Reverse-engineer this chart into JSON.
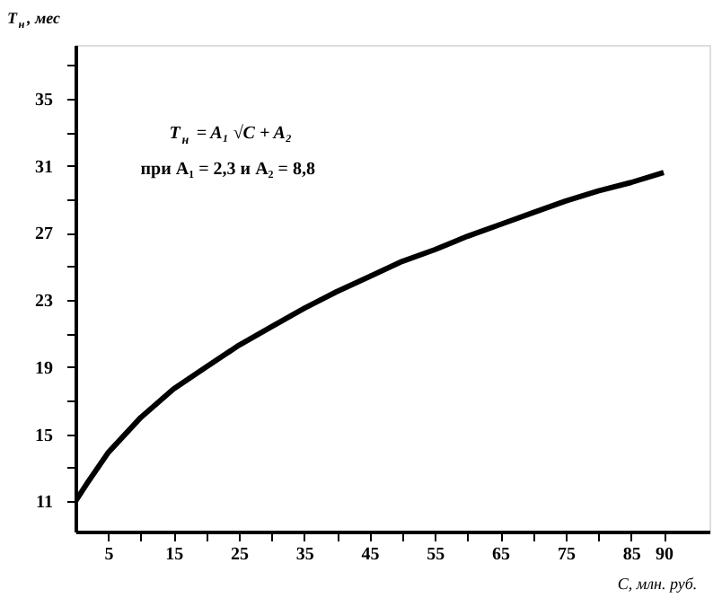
{
  "chart_data": {
    "type": "line",
    "xlabel": "C, млн. руб.",
    "ylabel": "T$_{н}$, мес",
    "annotations": [
      "T$_{н}$ = A₁ √C + A₂",
      "при A₁ = 2,3 и A₂ = 8,8"
    ],
    "x": [
      0,
      2,
      5,
      10,
      15,
      20,
      25,
      30,
      35,
      40,
      45,
      50,
      55,
      60,
      65,
      70,
      75,
      80,
      85,
      90
    ],
    "series": [
      {
        "color": "#000000",
        "values": [
          11.0,
          12.2,
          13.9,
          16.0,
          17.7,
          19.0,
          20.3,
          21.4,
          22.5,
          23.5,
          24.4,
          25.3,
          26.0,
          26.8,
          27.5,
          28.2,
          28.9,
          29.5,
          30.0,
          30.6
        ]
      }
    ],
    "xlim": [
      0,
      97
    ],
    "ylim": [
      9.2,
      38.2
    ],
    "xticks": [
      5,
      {
        "value": 10,
        "label": null
      },
      15,
      {
        "value": 20,
        "label": null
      },
      25,
      {
        "value": 30,
        "label": null
      },
      35,
      {
        "value": 40,
        "label": null
      },
      45,
      {
        "value": 50,
        "label": null
      },
      55,
      {
        "value": 60,
        "label": null
      },
      65,
      {
        "value": 70,
        "label": null
      },
      75,
      {
        "value": 80,
        "label": null
      },
      85,
      90
    ],
    "yticks": [
      11,
      {
        "value": 13,
        "label": null
      },
      15,
      {
        "value": 17,
        "label": null
      },
      19,
      {
        "value": 21,
        "label": null
      },
      23,
      {
        "value": 25,
        "label": null
      },
      27,
      {
        "value": 29,
        "label": null
      },
      31,
      {
        "value": 33,
        "label": null
      },
      35,
      {
        "value": 37,
        "label": null
      }
    ],
    "grid": false,
    "marker": "none",
    "line_style": "solid"
  }
}
